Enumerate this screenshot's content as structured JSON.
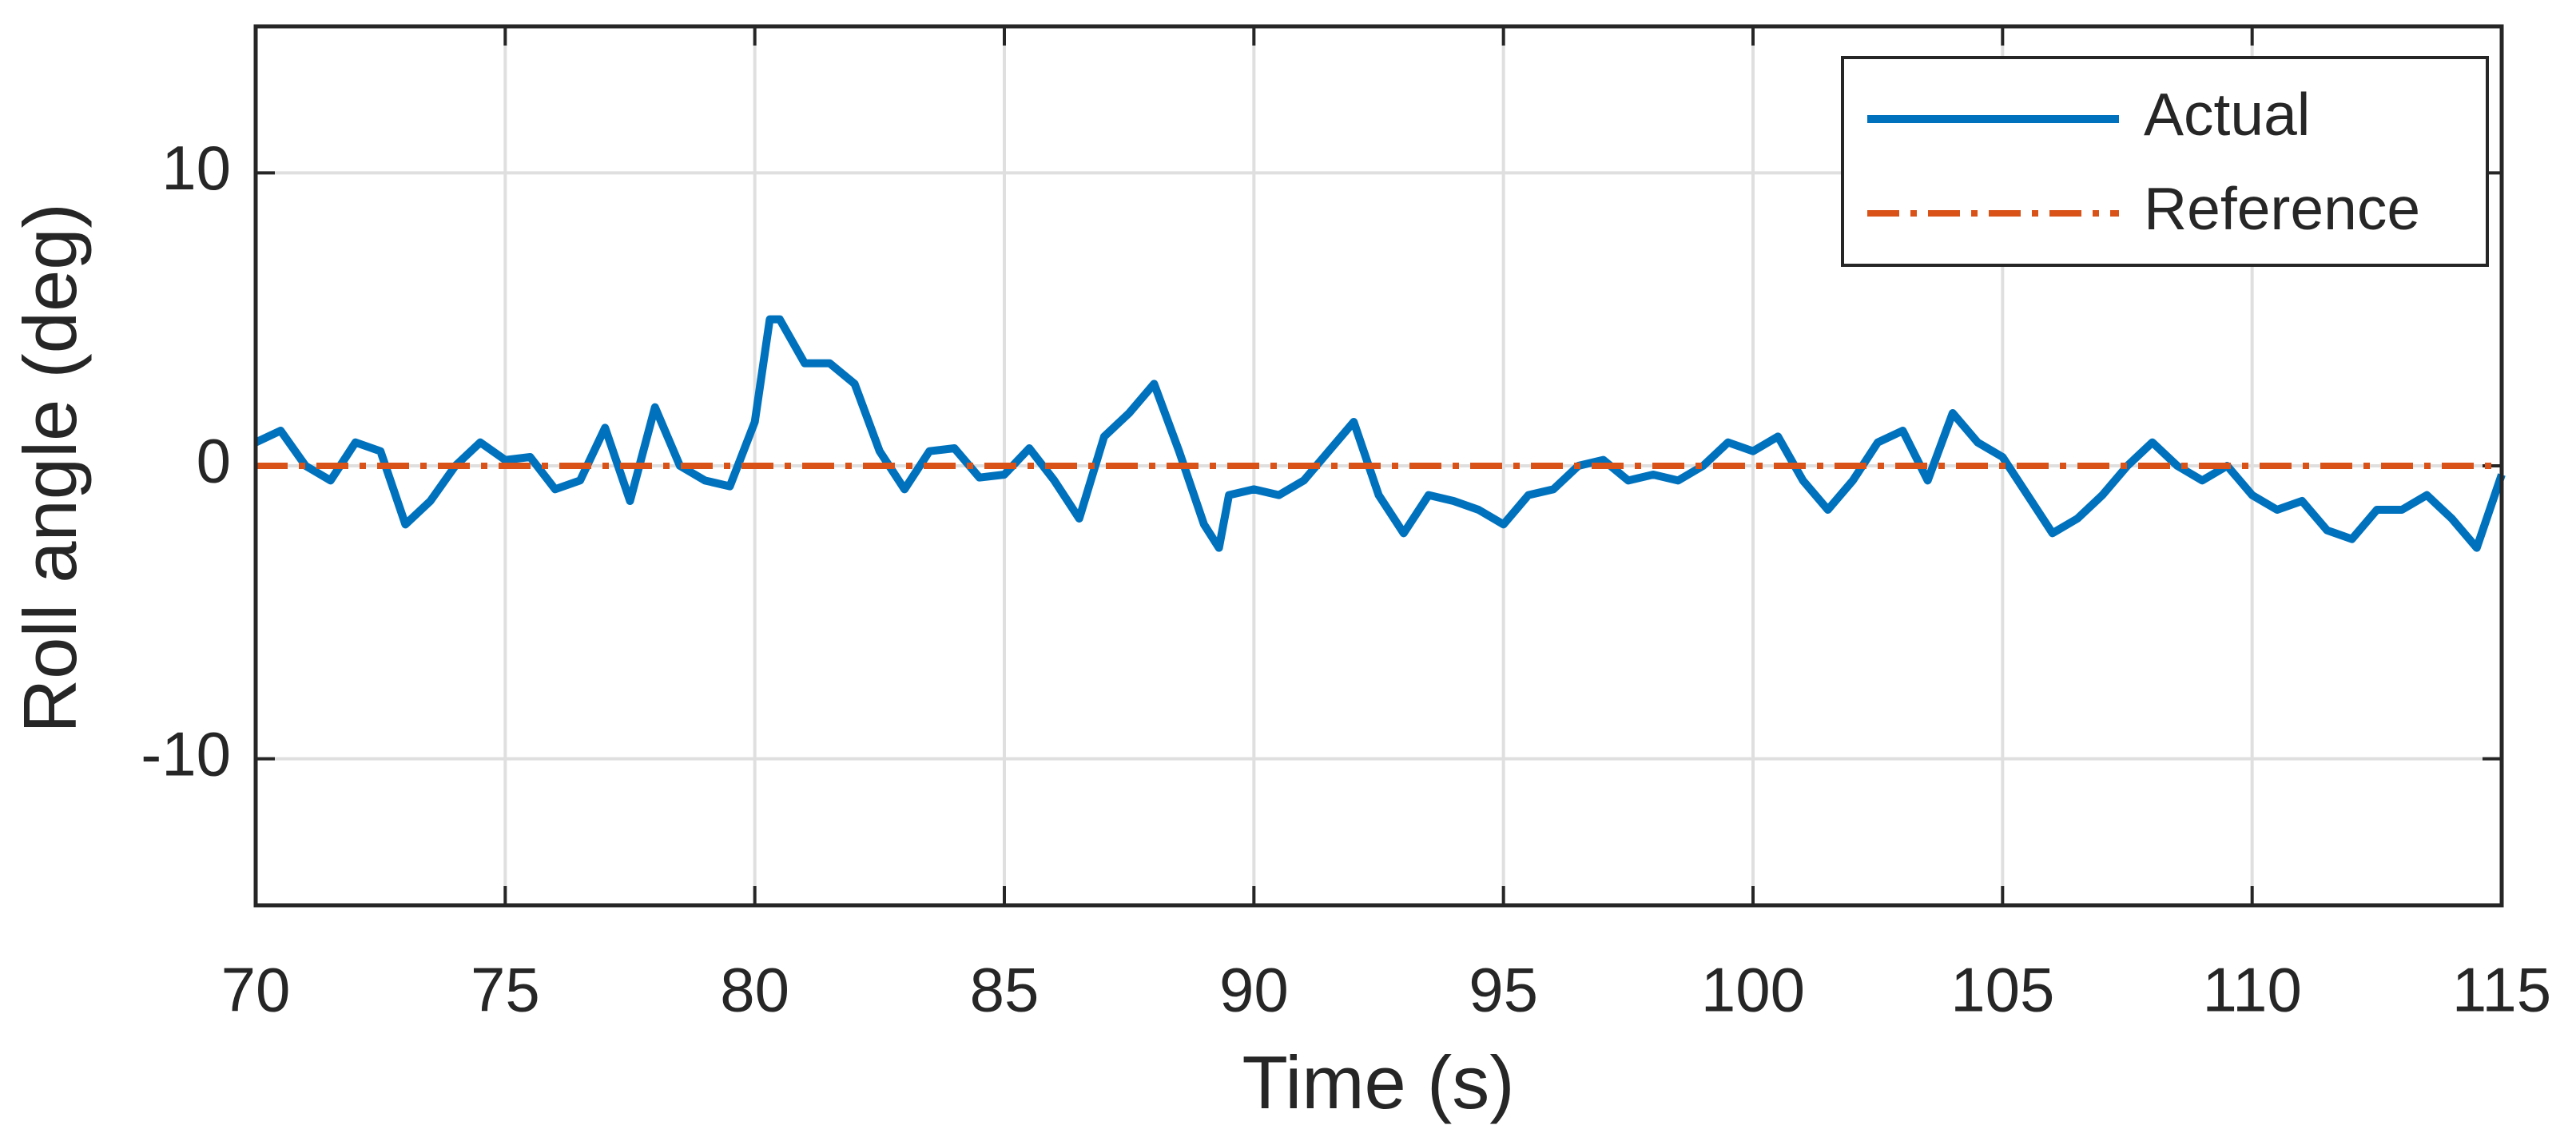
{
  "chart_data": {
    "type": "line",
    "xlabel": "Time (s)",
    "ylabel": "Roll angle (deg)",
    "xlim": [
      70,
      115
    ],
    "xticks": [
      70,
      75,
      80,
      85,
      90,
      95,
      100,
      105,
      110,
      115
    ],
    "ylim": [
      -15,
      15
    ],
    "yticks": [
      -10,
      0,
      10
    ],
    "grid": true,
    "legend": "upper right",
    "series": [
      {
        "name": "Actual",
        "color": "#0072BD",
        "style": "solid",
        "x": [
          70,
          70.5,
          71,
          71.5,
          72,
          72.5,
          73,
          73.5,
          74,
          74.5,
          75,
          75.5,
          76,
          76.5,
          77,
          77.5,
          78,
          78.5,
          79,
          79.5,
          80,
          80.3,
          80.5,
          81,
          81.5,
          82,
          82.5,
          83,
          83.5,
          84,
          84.5,
          85,
          85.5,
          86,
          86.5,
          87,
          87.5,
          88,
          88.5,
          89,
          89.3,
          89.5,
          90,
          90.5,
          91,
          91.5,
          92,
          92.5,
          93,
          93.5,
          94,
          94.5,
          95,
          95.5,
          96,
          96.5,
          97,
          97.5,
          98,
          98.5,
          99,
          99.5,
          100,
          100.5,
          101,
          101.5,
          102,
          102.5,
          103,
          103.5,
          104,
          104.5,
          105,
          105.5,
          106,
          106.5,
          107,
          107.5,
          108,
          108.5,
          109,
          109.5,
          110,
          110.5,
          111,
          111.5,
          112,
          112.5,
          113,
          113.5,
          114,
          114.5,
          115
        ],
        "values": [
          0.8,
          1.2,
          0.0,
          -0.5,
          0.8,
          0.5,
          -2.0,
          -1.2,
          0.0,
          0.8,
          0.2,
          0.3,
          -0.8,
          -0.5,
          1.3,
          -1.2,
          2.0,
          0.0,
          -0.5,
          -0.7,
          1.5,
          5.0,
          5.0,
          3.5,
          3.5,
          2.8,
          0.5,
          -0.8,
          0.5,
          0.6,
          -0.4,
          -0.3,
          0.6,
          -0.5,
          -1.8,
          1.0,
          1.8,
          2.8,
          0.5,
          -2.0,
          -2.8,
          -1.0,
          -0.8,
          -1.0,
          -0.5,
          0.5,
          1.5,
          -1.0,
          -2.3,
          -1.0,
          -1.2,
          -1.5,
          -2.0,
          -1.0,
          -0.8,
          0.0,
          0.2,
          -0.5,
          -0.3,
          -0.5,
          0.0,
          0.8,
          0.5,
          1.0,
          -0.5,
          -1.5,
          -0.5,
          0.8,
          1.2,
          -0.5,
          1.8,
          0.8,
          0.3,
          -1.0,
          -2.3,
          -1.8,
          -1.0,
          0.0,
          0.8,
          0.0,
          -0.5,
          0.0,
          -1.0,
          -1.5,
          -1.2,
          -2.2,
          -2.5,
          -1.5,
          -1.5,
          -1.0,
          -1.8,
          -2.8,
          -0.3
        ]
      },
      {
        "name": "Reference",
        "color": "#D95319",
        "style": "dashdot",
        "x": [
          70,
          115
        ],
        "values": [
          0,
          0
        ]
      }
    ]
  }
}
